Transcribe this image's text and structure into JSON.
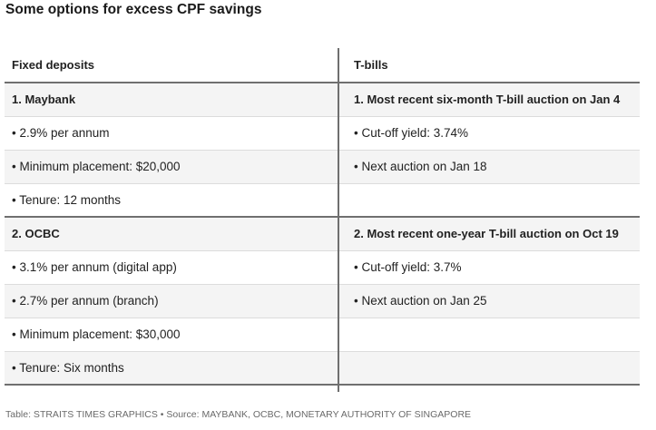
{
  "title": "Some options for excess CPF savings",
  "table": {
    "headers": {
      "left": "Fixed deposits",
      "right": "T-bills"
    },
    "rows": [
      {
        "left": "1. Maybank",
        "right": "1. Most recent six-month T-bill auction on Jan 4"
      },
      {
        "left": "• 2.9% per annum",
        "right": "• Cut-off yield: 3.74%"
      },
      {
        "left": "• Minimum placement: $20,000",
        "right": "• Next auction on Jan 18"
      },
      {
        "left": "• Tenure: 12 months",
        "right": ""
      },
      {
        "left": "2. OCBC",
        "right": "2. Most recent one-year T-bill auction on Oct 19"
      },
      {
        "left": "• 3.1% per annum (digital app)",
        "right": "• Cut-off yield: 3.7%"
      },
      {
        "left": "• 2.7% per annum (branch)",
        "right": "• Next auction on Jan 25"
      },
      {
        "left": "• Minimum placement: $30,000",
        "right": ""
      },
      {
        "left": "• Tenure: Six months",
        "right": ""
      }
    ]
  },
  "footer": "Table: STRAITS TIMES GRAPHICS • Source: MAYBANK, OCBC, MONETARY AUTHORITY OF SINGAPORE"
}
